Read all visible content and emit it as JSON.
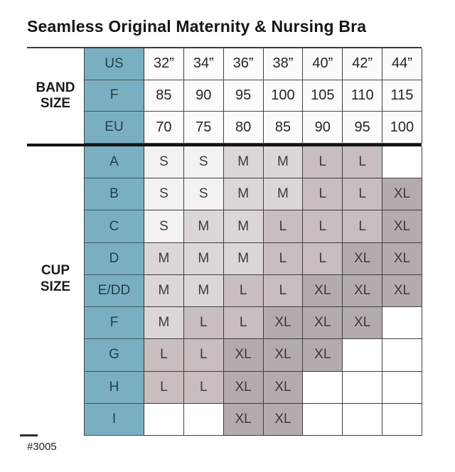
{
  "title": "Seamless Original Maternity & Nursing Bra",
  "footer_code": "#3005",
  "band_section": {
    "label": "BAND SIZE",
    "rows": [
      {
        "header": "US",
        "values": [
          "32”",
          "34”",
          "36”",
          "38”",
          "40”",
          "42”",
          "44”"
        ]
      },
      {
        "header": "F",
        "values": [
          "85",
          "90",
          "95",
          "100",
          "105",
          "110",
          "115"
        ]
      },
      {
        "header": "EU",
        "values": [
          "70",
          "75",
          "80",
          "85",
          "90",
          "95",
          "100"
        ]
      }
    ]
  },
  "cup_section": {
    "label": "CUP SIZE",
    "rows": [
      {
        "header": "A",
        "values": [
          "S",
          "S",
          "M",
          "M",
          "L",
          "L",
          ""
        ]
      },
      {
        "header": "B",
        "values": [
          "S",
          "S",
          "M",
          "M",
          "L",
          "L",
          "XL"
        ]
      },
      {
        "header": "C",
        "values": [
          "S",
          "M",
          "M",
          "L",
          "L",
          "L",
          "XL"
        ]
      },
      {
        "header": "D",
        "values": [
          "M",
          "M",
          "M",
          "L",
          "L",
          "XL",
          "XL"
        ]
      },
      {
        "header": "E/DD",
        "values": [
          "M",
          "M",
          "L",
          "L",
          "XL",
          "XL",
          "XL"
        ]
      },
      {
        "header": "F",
        "values": [
          "M",
          "L",
          "L",
          "XL",
          "XL",
          "XL",
          ""
        ]
      },
      {
        "header": "G",
        "values": [
          "L",
          "L",
          "XL",
          "XL",
          "XL",
          "",
          ""
        ]
      },
      {
        "header": "H",
        "values": [
          "L",
          "L",
          "XL",
          "XL",
          "",
          "",
          ""
        ]
      },
      {
        "header": "I",
        "values": [
          "",
          "",
          "XL",
          "XL",
          "",
          "",
          ""
        ]
      }
    ]
  },
  "colors": {
    "header_teal": "#7aafc2",
    "size_s": "#f4f2f1",
    "size_m": "#dcd6d4",
    "size_l": "#c7bebd",
    "size_xl": "#b4abac",
    "band_cell": "#fcfbfb",
    "empty_cell": "#ffffff"
  },
  "chart_data": {
    "type": "table",
    "title": "Seamless Original Maternity & Nursing Bra",
    "style_number": "#3005",
    "band_size_columns": {
      "US": [
        "32”",
        "34”",
        "36”",
        "38”",
        "40”",
        "42”",
        "44”"
      ],
      "F": [
        "85",
        "90",
        "95",
        "100",
        "105",
        "110",
        "115"
      ],
      "EU": [
        "70",
        "75",
        "80",
        "85",
        "90",
        "95",
        "100"
      ]
    },
    "cup_size_rows": [
      {
        "cup": "A",
        "sizes_by_band": [
          "S",
          "S",
          "M",
          "M",
          "L",
          "L",
          ""
        ]
      },
      {
        "cup": "B",
        "sizes_by_band": [
          "S",
          "S",
          "M",
          "M",
          "L",
          "L",
          "XL"
        ]
      },
      {
        "cup": "C",
        "sizes_by_band": [
          "S",
          "M",
          "M",
          "L",
          "L",
          "L",
          "XL"
        ]
      },
      {
        "cup": "D",
        "sizes_by_band": [
          "M",
          "M",
          "M",
          "L",
          "L",
          "XL",
          "XL"
        ]
      },
      {
        "cup": "E/DD",
        "sizes_by_band": [
          "M",
          "M",
          "L",
          "L",
          "XL",
          "XL",
          "XL"
        ]
      },
      {
        "cup": "F",
        "sizes_by_band": [
          "M",
          "L",
          "L",
          "XL",
          "XL",
          "XL",
          ""
        ]
      },
      {
        "cup": "G",
        "sizes_by_band": [
          "L",
          "L",
          "XL",
          "XL",
          "XL",
          "",
          ""
        ]
      },
      {
        "cup": "H",
        "sizes_by_band": [
          "L",
          "L",
          "XL",
          "XL",
          "",
          "",
          ""
        ]
      },
      {
        "cup": "I",
        "sizes_by_band": [
          "",
          "",
          "XL",
          "XL",
          "",
          "",
          ""
        ]
      }
    ],
    "cell_shading": {
      "S": "#f4f2f1",
      "M": "#dcd6d4",
      "L": "#c7bebd",
      "XL": "#b4abac",
      "blank": "#ffffff"
    },
    "layout_hints": {
      "header_column_color": "#7aafc2",
      "heavy_rule_between_band_and_cup": true,
      "grid": true
    }
  }
}
